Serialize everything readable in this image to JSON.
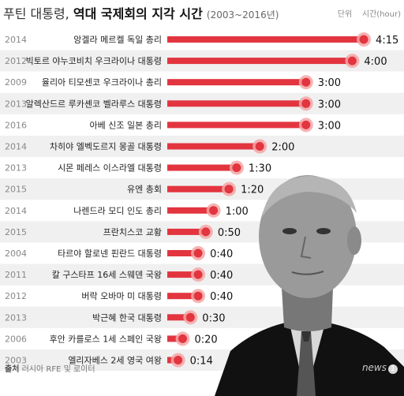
{
  "header": {
    "title_part1": "푸틴 대통령,",
    "title_part2": "역대 국제회의 지각 시간",
    "title_range": "(2003~2016년)",
    "unit_label": "단위",
    "unit_value": "시간(hour)"
  },
  "source": {
    "label": "출처",
    "text": "러시아 RFE 및 로이터"
  },
  "logo": {
    "text": "news",
    "mark": "1"
  },
  "colors": {
    "bar": "#e2353f",
    "dot_halo": "#f4a6a6",
    "band": "#f0f0f0",
    "year": "#888888"
  },
  "chart_data": {
    "type": "bar",
    "orientation": "horizontal",
    "title": "푸틴 대통령, 역대 국제회의 지각 시간 (2003~2016년)",
    "unit": "시간(hour)",
    "categories": [
      "앙겔라 메르켈 독일 총리",
      "빅토르 야누코비치 우크라이나 대통령",
      "율리아 티모센코 우크라이나 총리",
      "알렉산드르 루카셴코 벨라루스 대통령",
      "아베 신조 일본 총리",
      "차히야 엘벡도르지 몽골 대통령",
      "시몬 페레스 이스라엘 대통령",
      "유엔 총회",
      "나렌드라 모디 인도 총리",
      "프란치스코 교황",
      "타르야 할로넨 핀란드 대통령",
      "칼 구스타프 16세 스웨덴 국왕",
      "버락 오바마 미 대통령",
      "박근혜 한국 대통령",
      "후안 카를로스 1세 스페인 국왕",
      "엘리자베스 2세 영국 여왕"
    ],
    "years": [
      "2014",
      "2012",
      "2009",
      "2013",
      "2016",
      "2014",
      "2013",
      "2015",
      "2014",
      "2015",
      "2004",
      "2011",
      "2012",
      "2013",
      "2006",
      "2003"
    ],
    "labels": [
      "4:15",
      "4:00",
      "3:00",
      "3:00",
      "3:00",
      "2:00",
      "1:30",
      "1:20",
      "1:00",
      "0:50",
      "0:40",
      "0:40",
      "0:40",
      "0:30",
      "0:20",
      "0:14"
    ],
    "values": [
      4.25,
      4.0,
      3.0,
      3.0,
      3.0,
      2.0,
      1.5,
      1.333,
      1.0,
      0.833,
      0.667,
      0.667,
      0.667,
      0.5,
      0.333,
      0.233
    ]
  }
}
